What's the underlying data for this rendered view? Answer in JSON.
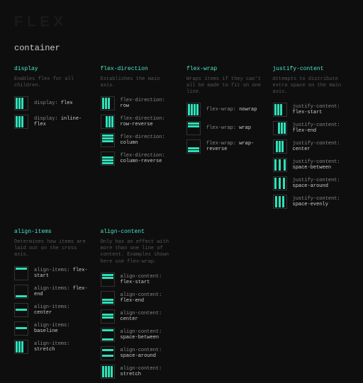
{
  "logo": "FLEX",
  "pageTitle": "container",
  "colors": {
    "accent": "#4de8c6",
    "bg": "#0e0e0e",
    "border": "#333333",
    "text": "#aaaaaa",
    "muted": "#555555"
  },
  "sections": {
    "display": {
      "title": "display",
      "desc": "Enables flex for all children.",
      "items": [
        {
          "prop": "display:",
          "val": "flex"
        },
        {
          "prop": "display:",
          "val": "inline-flex"
        }
      ]
    },
    "flexDirection": {
      "title": "flex-direction",
      "desc": "Establishes the main axis.",
      "items": [
        {
          "prop": "flex-direction:",
          "val": "row"
        },
        {
          "prop": "flex-direction:",
          "val": "row-reverse"
        },
        {
          "prop": "flex-direction:",
          "val": "column"
        },
        {
          "prop": "flex-direction:",
          "val": "column-reverse"
        }
      ]
    },
    "flexWrap": {
      "title": "flex-wrap",
      "desc": "Wraps items if they can't all be made to fit on one line.",
      "items": [
        {
          "prop": "flex-wrap:",
          "val": "nowrap"
        },
        {
          "prop": "flex-wrap:",
          "val": "wrap"
        },
        {
          "prop": "flex-wrap:",
          "val": "wrap-reverse"
        }
      ]
    },
    "justifyContent": {
      "title": "justify-content",
      "desc": "Attempts to distribute extra space on the main axis.",
      "items": [
        {
          "prop": "justify-content:",
          "val": "flex-start"
        },
        {
          "prop": "justify-content:",
          "val": "flex-end"
        },
        {
          "prop": "justify-content:",
          "val": "center"
        },
        {
          "prop": "justify-content:",
          "val": "space-between"
        },
        {
          "prop": "justify-content:",
          "val": "space-around"
        },
        {
          "prop": "justify-content:",
          "val": "space-evenly"
        }
      ]
    },
    "alignItems": {
      "title": "align-items",
      "desc": "Determines how items are laid out on the cross axis.",
      "items": [
        {
          "prop": "align-items:",
          "val": "flex-start"
        },
        {
          "prop": "align-items:",
          "val": "flex-end"
        },
        {
          "prop": "align-items:",
          "val": "center"
        },
        {
          "prop": "align-items:",
          "val": "baseline"
        },
        {
          "prop": "align-items:",
          "val": "stretch"
        }
      ]
    },
    "alignContent": {
      "title": "align-content",
      "desc": "Only has an effect with more than one line of content. Examples shown here use flex-wrap.",
      "items": [
        {
          "prop": "align-content:",
          "val": "flex-start"
        },
        {
          "prop": "align-content:",
          "val": "flex-end"
        },
        {
          "prop": "align-content:",
          "val": "center"
        },
        {
          "prop": "align-content:",
          "val": "space-between"
        },
        {
          "prop": "align-content:",
          "val": "space-around"
        },
        {
          "prop": "align-content:",
          "val": "stretch"
        }
      ]
    }
  }
}
